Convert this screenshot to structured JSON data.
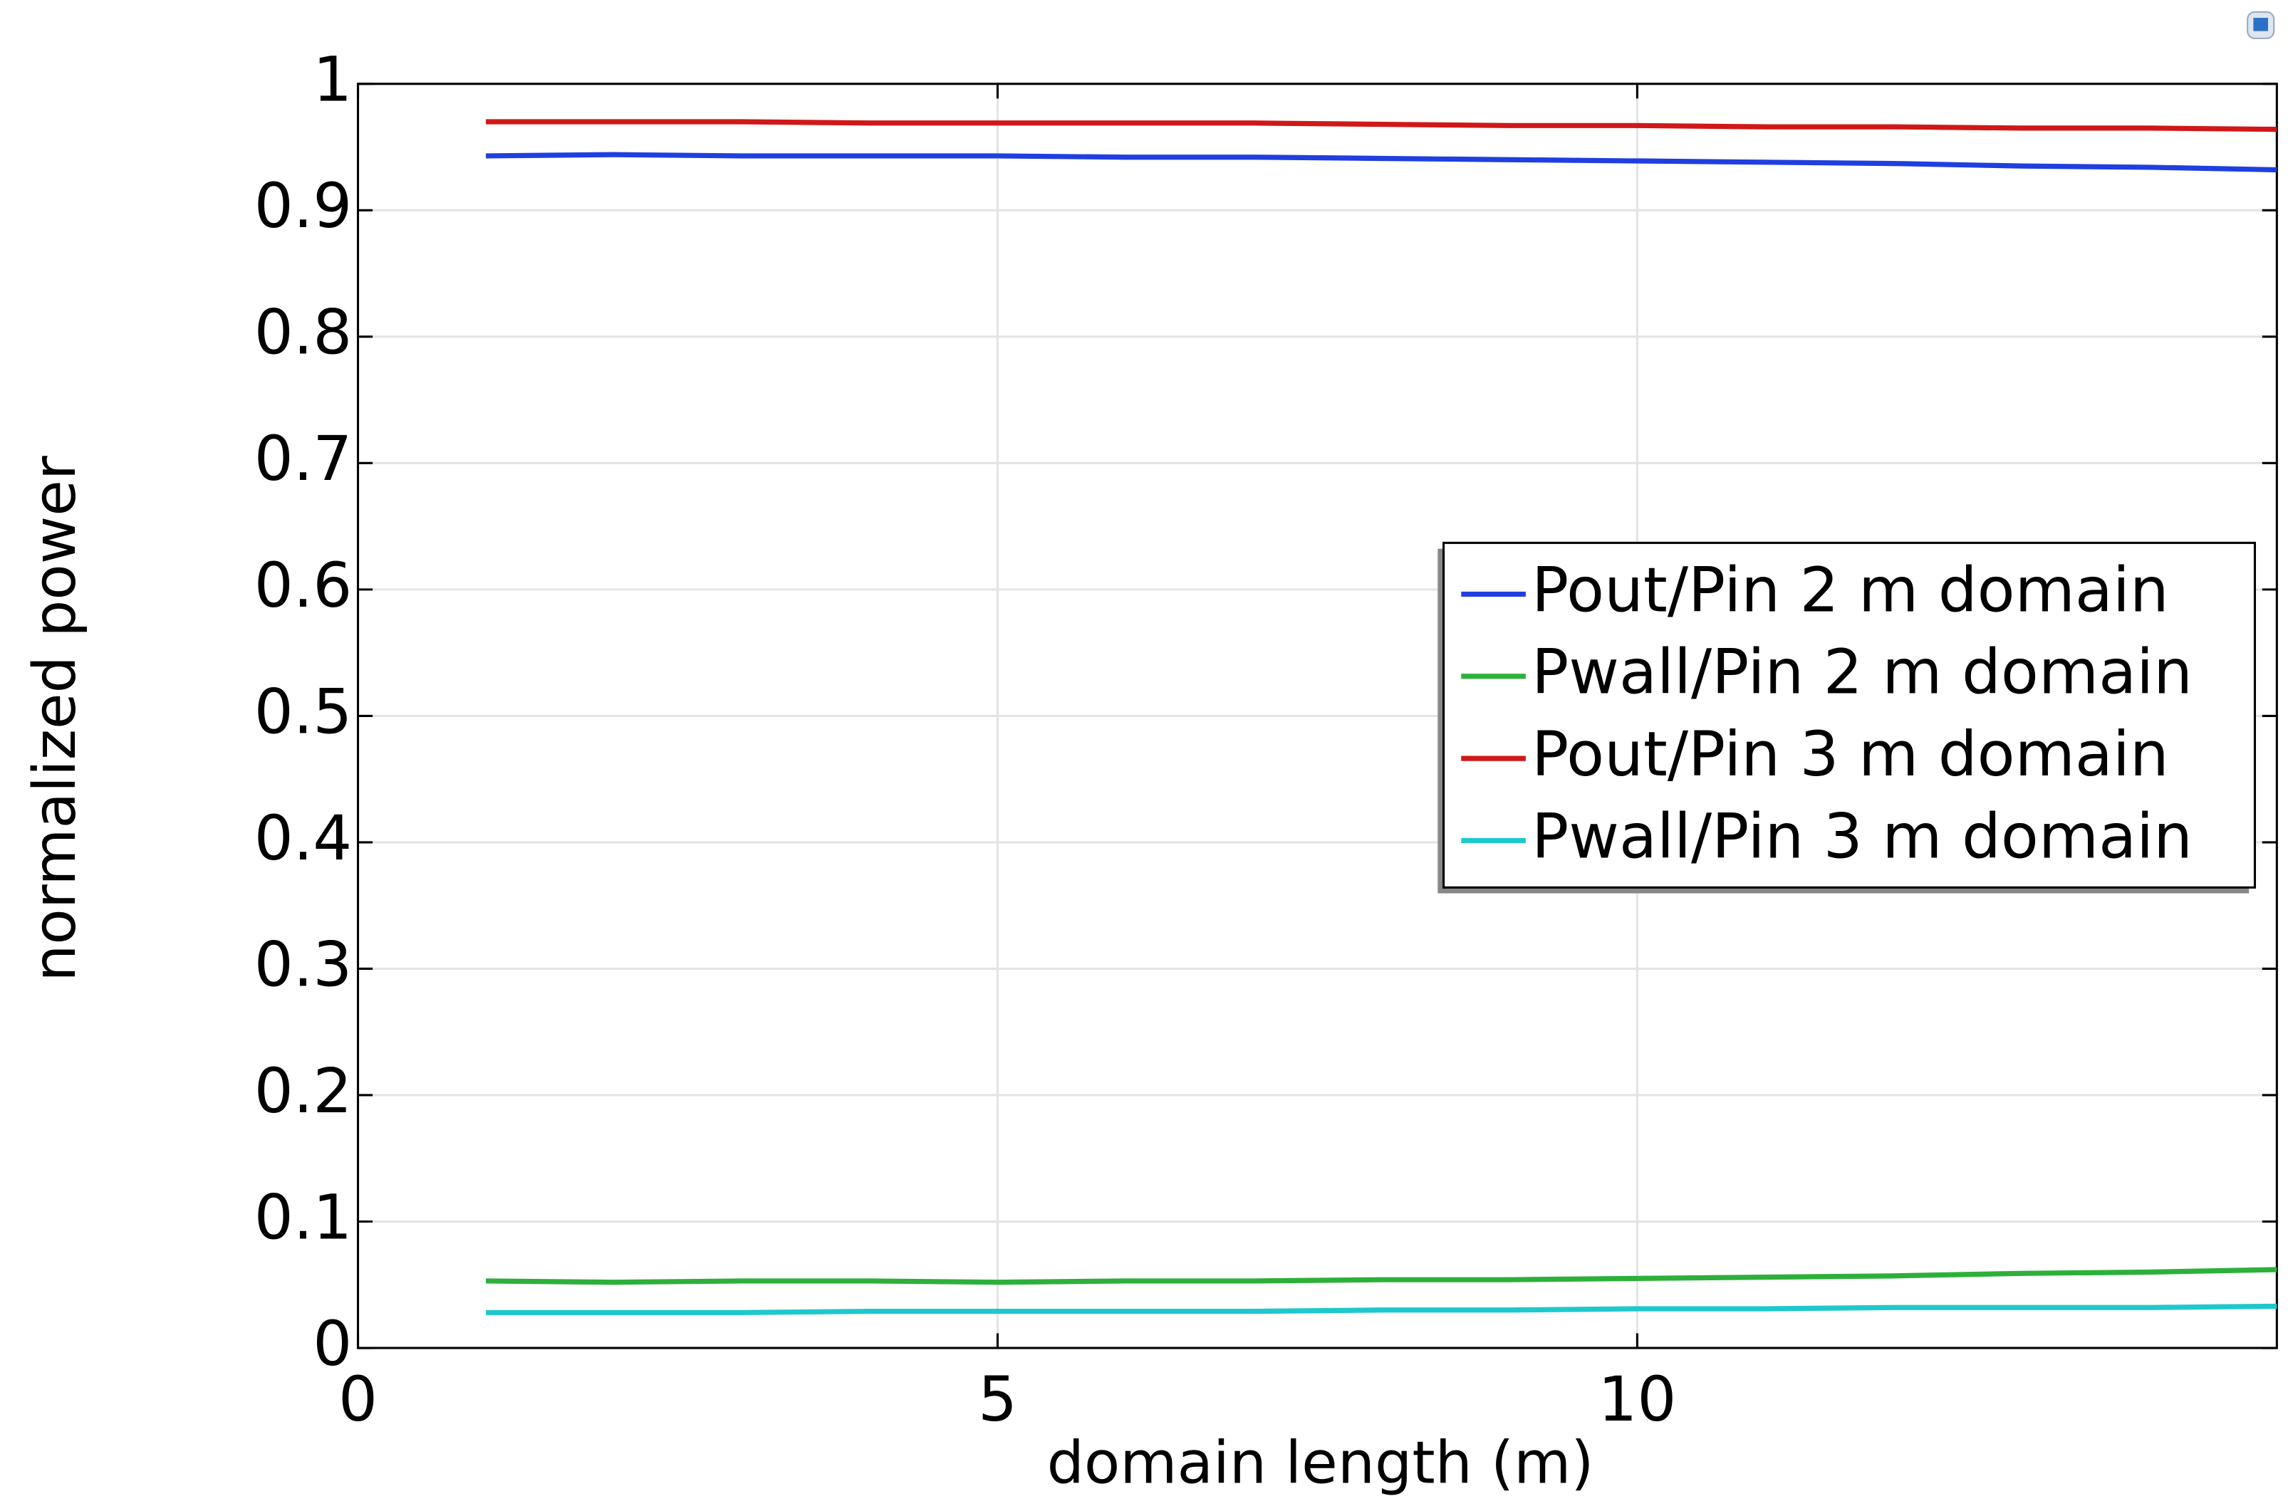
{
  "chart_data": {
    "type": "line",
    "x_label": "domain length (m)",
    "y_label": "normalized power",
    "x": [
      1,
      2,
      3,
      4,
      5,
      6,
      7,
      8,
      9,
      10,
      11,
      12,
      13,
      14,
      15
    ],
    "series": [
      {
        "name": "Pout/Pin 2 m domain",
        "color": "#1f3fe0",
        "values": [
          0.943,
          0.944,
          0.943,
          0.943,
          0.943,
          0.942,
          0.942,
          0.941,
          0.94,
          0.939,
          0.938,
          0.937,
          0.935,
          0.934,
          0.932
        ]
      },
      {
        "name": "Pwall/Pin 2 m domain",
        "color": "#2db03a",
        "values": [
          0.053,
          0.052,
          0.053,
          0.053,
          0.052,
          0.053,
          0.053,
          0.054,
          0.054,
          0.055,
          0.056,
          0.057,
          0.059,
          0.06,
          0.062
        ]
      },
      {
        "name": "Pout/Pin 3 m domain",
        "color": "#d01818",
        "values": [
          0.97,
          0.97,
          0.97,
          0.969,
          0.969,
          0.969,
          0.969,
          0.968,
          0.967,
          0.967,
          0.966,
          0.966,
          0.965,
          0.965,
          0.964
        ]
      },
      {
        "name": "Pwall/Pin 3 m domain",
        "color": "#1ec8cc",
        "values": [
          0.028,
          0.028,
          0.028,
          0.029,
          0.029,
          0.029,
          0.029,
          0.03,
          0.03,
          0.031,
          0.031,
          0.032,
          0.032,
          0.032,
          0.033
        ]
      }
    ],
    "xlim": [
      0,
      15
    ],
    "xticks": [
      0,
      5,
      10
    ],
    "ylim": [
      0,
      1
    ],
    "yticks": [
      0,
      0.1,
      0.2,
      0.3,
      0.4,
      0.5,
      0.6,
      0.7,
      0.8,
      0.9,
      1
    ],
    "grid": true
  }
}
